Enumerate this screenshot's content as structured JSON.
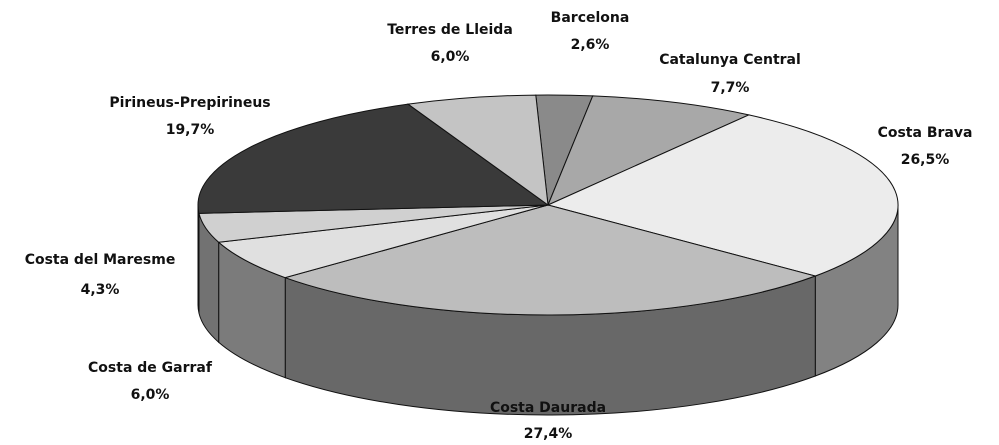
{
  "chart_data": {
    "type": "pie3d",
    "categories": [
      "Barcelona",
      "Catalunya Central",
      "Costa Brava",
      "Costa Daurada",
      "Costa de Garraf",
      "Costa del Maresme",
      "Pirineus-Prepirineus",
      "Terres de Lleida"
    ],
    "values": [
      2.6,
      7.7,
      26.5,
      27.4,
      6.0,
      4.3,
      19.7,
      6.0
    ],
    "value_labels": [
      "2,6%",
      "7,7%",
      "26,5%",
      "27,4%",
      "6,0%",
      "4,3%",
      "19,7%",
      "6,0%"
    ],
    "colors": [
      "#8a8a8a",
      "#a8a8a8",
      "#ececec",
      "#bdbdbd",
      "#e0e0e0",
      "#d0d0d0",
      "#3a3a3a",
      "#c4c4c4"
    ]
  }
}
